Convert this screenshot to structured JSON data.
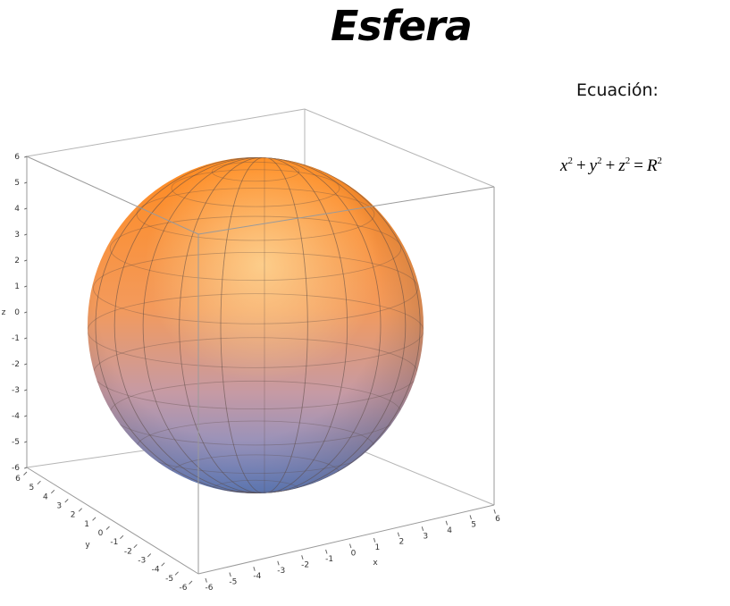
{
  "title": "Esfera",
  "equation_label": "Ecuación:",
  "equation": {
    "x": "x",
    "y": "y",
    "z": "z",
    "R": "R",
    "exp": "2",
    "plus": "+",
    "equals": "="
  },
  "plot": {
    "colors": {
      "top": "#ff8a1e",
      "bottom": "#6b8ad0",
      "box": "#9a9a9a"
    },
    "axes": {
      "z_label": "z",
      "y_label": "y",
      "x_label": "x",
      "z_ticks": [
        "6",
        "5",
        "4",
        "3",
        "2",
        "1",
        "0",
        "-1",
        "-2",
        "-3",
        "-4",
        "-5",
        "-6"
      ],
      "y_ticks": [
        "6",
        "5",
        "4",
        "3",
        "2",
        "1",
        "0",
        "-1",
        "-2",
        "-3",
        "-4",
        "-5",
        "-6"
      ],
      "x_ticks": [
        "-6",
        "-5",
        "-4",
        "-3",
        "-2",
        "-1",
        "0",
        "1",
        "2",
        "3",
        "4",
        "5",
        "6"
      ]
    }
  }
}
